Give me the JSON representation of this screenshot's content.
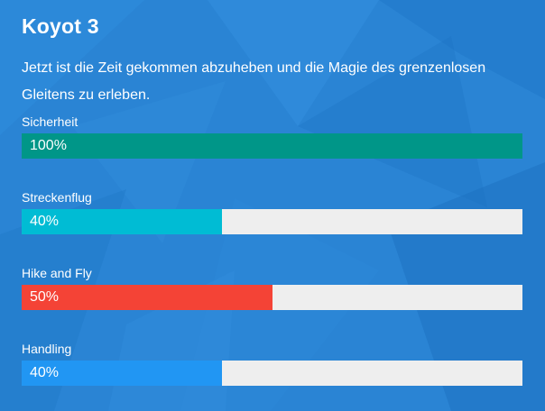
{
  "product": {
    "title": "Koyot 3",
    "description": "Jetzt ist die Zeit gekommen abzuheben und die Magie des grenzenlosen Gleitens zu erleben."
  },
  "skills": [
    {
      "label": "Sicherheit",
      "value_text": "100%",
      "percent": 100,
      "color": "#009688"
    },
    {
      "label": "Streckenflug",
      "value_text": "40%",
      "percent": 40,
      "color": "#00bcd4"
    },
    {
      "label": "Hike and Fly",
      "value_text": "50%",
      "percent": 50,
      "color": "#f44336"
    },
    {
      "label": "Handling",
      "value_text": "40%",
      "percent": 40,
      "color": "#2196f3"
    }
  ],
  "colors": {
    "background": "#2a83d3",
    "track": "#eeeeee"
  }
}
